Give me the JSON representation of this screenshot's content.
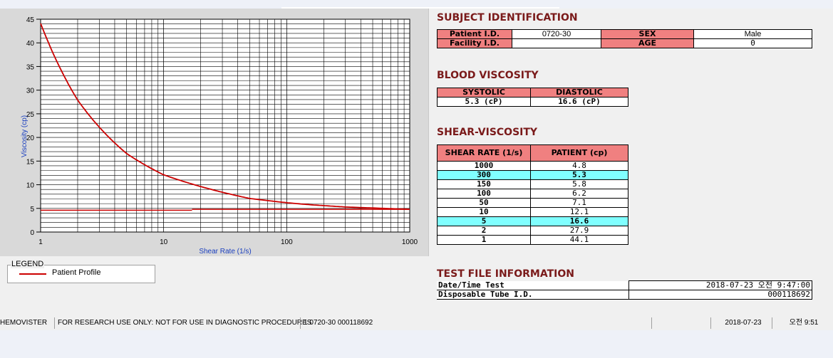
{
  "chart_data": {
    "type": "line",
    "xlabel": "Shear Rate (1/s)",
    "ylabel": "Viscosity (cp)",
    "xscale": "log",
    "xlim": [
      1,
      1000
    ],
    "ylim": [
      0,
      45
    ],
    "x_ticks": [
      "1",
      "10",
      "100",
      "1000"
    ],
    "y_ticks": [
      "0",
      "5",
      "10",
      "15",
      "20",
      "25",
      "30",
      "35",
      "40",
      "45"
    ],
    "grid": true,
    "series": [
      {
        "name": "Patient Profile",
        "x": [
          1,
          2,
          5,
          10,
          50,
          100,
          150,
          300,
          1000
        ],
        "y": [
          44.1,
          27.9,
          16.6,
          12.1,
          7.1,
          6.2,
          5.8,
          5.3,
          4.8
        ]
      }
    ],
    "reference_lines": [
      4.6,
      4.8
    ]
  },
  "legend": {
    "title": "LEGEND",
    "item": "Patient Profile"
  },
  "subject": {
    "title": "SUBJECT IDENTIFICATION",
    "patient_id_label": "Patient I.D.",
    "patient_id": "0720-30",
    "sex_label": "SEX",
    "sex": "Male",
    "facility_label": "Facility I.D.",
    "facility": "",
    "age_label": "AGE",
    "age": "0"
  },
  "blood": {
    "title": "BLOOD VISCOSITY",
    "systolic_label": "SYSTOLIC",
    "systolic": "5.3 (cP)",
    "diastolic_label": "DIASTOLIC",
    "diastolic": "16.6 (cP)"
  },
  "shear": {
    "title": "SHEAR-VISCOSITY",
    "col1": "SHEAR RATE (1/s)",
    "col2": "PATIENT (cp)",
    "rows": [
      {
        "rate": "1000",
        "val": "4.8"
      },
      {
        "rate": "300",
        "val": "5.3"
      },
      {
        "rate": "150",
        "val": "5.8"
      },
      {
        "rate": "100",
        "val": "6.2"
      },
      {
        "rate": "50",
        "val": "7.1"
      },
      {
        "rate": "10",
        "val": "12.1"
      },
      {
        "rate": "5",
        "val": "16.6"
      },
      {
        "rate": "2",
        "val": "27.9"
      },
      {
        "rate": "1",
        "val": "44.1"
      }
    ]
  },
  "testfile": {
    "title": "TEST FILE INFORMATION",
    "date_label": "Date/Time Test",
    "date_value": "2018-07-23  오전 9:47:00",
    "tube_label": "Disposable Tube I.D.",
    "tube_value": "000118692"
  },
  "statusbar": {
    "app": "HEMOVISTER",
    "notice": "FOR RESEARCH USE ONLY: NOT FOR USE IN DIAGNOSTIC PROCEDURES",
    "record": "1  0720-30  000118692",
    "date": "2018-07-23",
    "time": "오전 9:51"
  },
  "colors": {
    "curve": "#cc0000",
    "header_pink": "#f08080",
    "highlight_cyan": "#80ffff",
    "section_title": "#7a1a1a"
  }
}
